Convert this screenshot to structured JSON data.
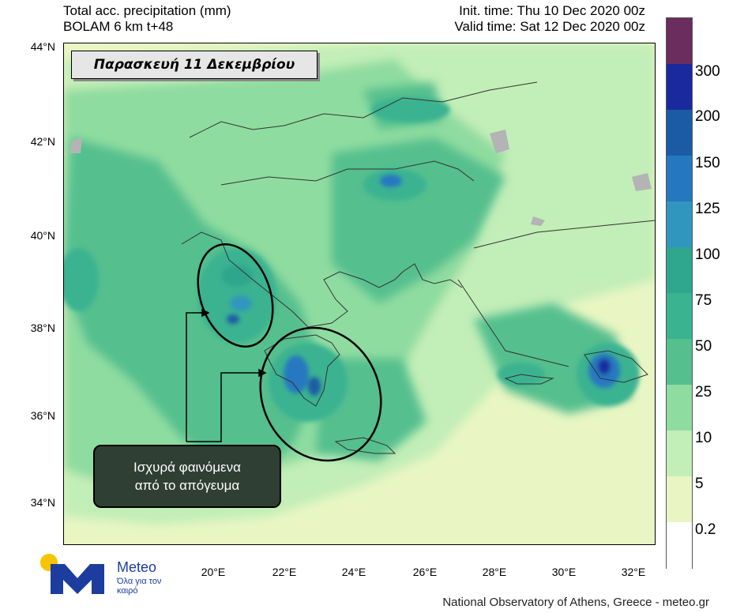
{
  "header": {
    "title": "Total acc. precipitation (mm)",
    "model": "BOLAM 6 km t+48",
    "init_time": "Init. time: Thu 10 Dec 2020 00z",
    "valid_time": "Valid time: Sat 12 Dec 2020 00z"
  },
  "date_box": "Παρασκευή 11 Δεκεμβρίου",
  "callout": {
    "line1": "Ισχυρά φαινόμενα",
    "line2": "από το απόγευμα"
  },
  "axes": {
    "lat_labels": [
      "44°N",
      "42°N",
      "40°N",
      "38°N",
      "36°N",
      "34°N"
    ],
    "lon_labels": [
      "20°E",
      "22°E",
      "24°E",
      "26°E",
      "28°E",
      "30°E",
      "32°E"
    ]
  },
  "colorbar": {
    "labels": [
      "300",
      "200",
      "150",
      "125",
      "100",
      "75",
      "50",
      "25",
      "10",
      "5",
      "0.2"
    ],
    "colors": [
      "#6b2c5e",
      "#1a2a9e",
      "#1b5ba5",
      "#2578c0",
      "#3196be",
      "#2fa68e",
      "#3ab391",
      "#55bf8e",
      "#8fdca0",
      "#c2eeb7",
      "#e9f6c3",
      "#ffffff"
    ]
  },
  "logo": {
    "name": "Meteo",
    "tagline": "Όλα για τον καιρό"
  },
  "credit": "National Observatory of Athens, Greece - meteo.gr"
}
